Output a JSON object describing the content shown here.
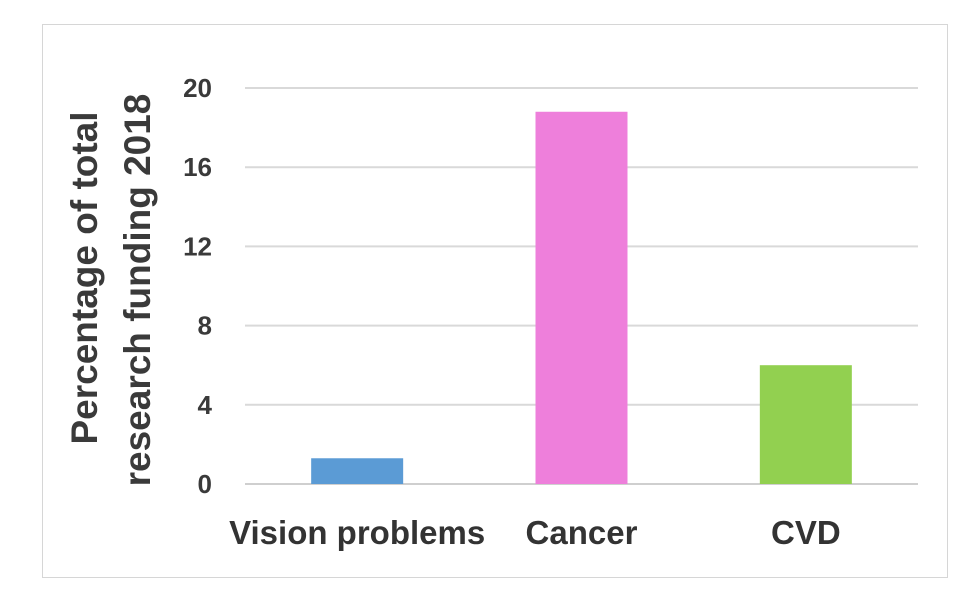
{
  "chart_data": {
    "type": "bar",
    "categories": [
      "Vision problems",
      "Cancer",
      "CVD"
    ],
    "values": [
      1.3,
      18.8,
      6.0
    ],
    "colors": [
      "#5b9bd5",
      "#ee7fdb",
      "#92d050"
    ],
    "ylabel_lines": [
      "Percentage of total",
      "research funding 2018"
    ],
    "xlabel": "",
    "title": "",
    "ylim": [
      0,
      20
    ],
    "yticks": [
      0,
      4,
      8,
      12,
      16,
      20
    ],
    "grid": true,
    "legend": "none"
  }
}
